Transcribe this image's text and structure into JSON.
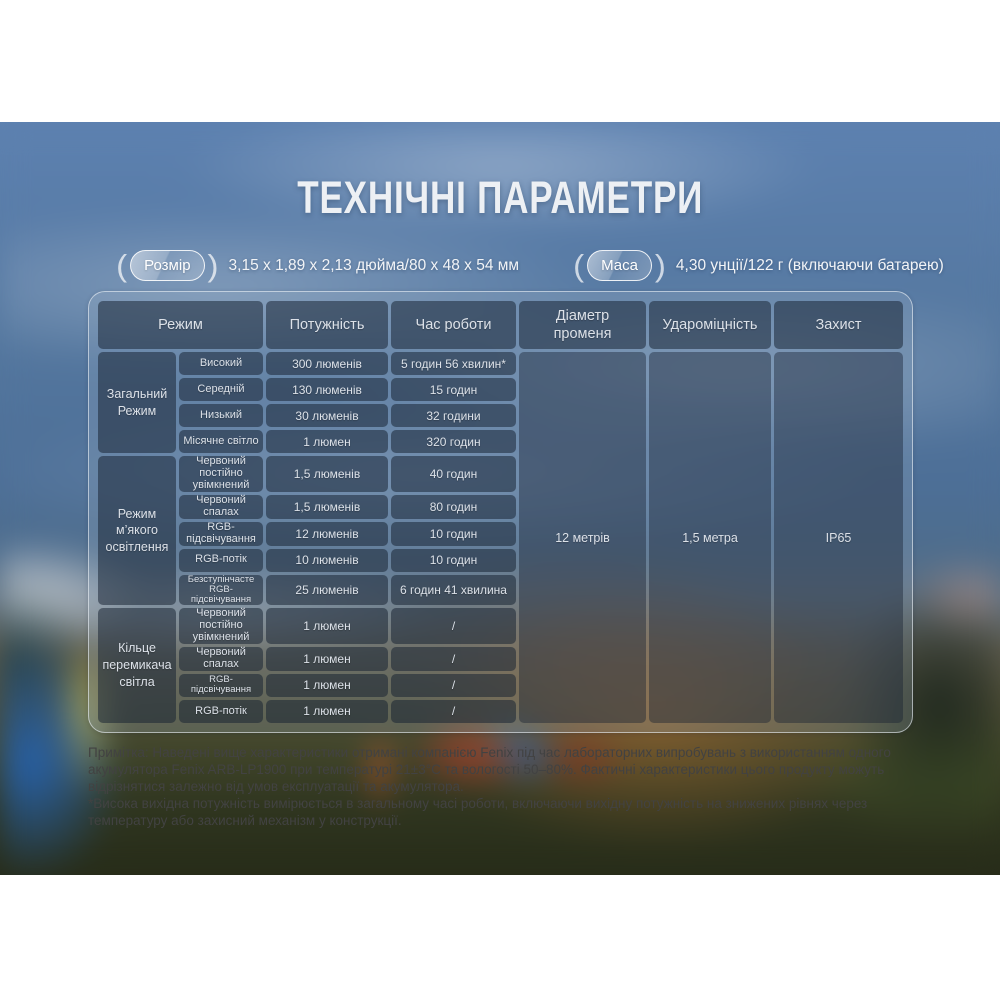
{
  "title": "ТЕХНІЧНІ ПАРАМЕТРИ",
  "badges": {
    "size_label": "Розмір",
    "size_value": "3,15 x 1,89 x 2,13 дюйма/80 x 48 x 54 мм",
    "mass_label": "Маса",
    "mass_value": "4,30 унції/122 г (включаючи батарею)"
  },
  "table": {
    "headers": {
      "mode": "Режим",
      "power": "Потужність",
      "runtime": "Час роботи",
      "beam": "Діаметр променя",
      "impact": "Удароміцність",
      "protection": "Захист"
    },
    "groups": [
      {
        "label": "Загальний Режим",
        "rows": [
          {
            "mode": "Високий",
            "power": "300 люменів",
            "runtime": "5 годин 56 хвилин*"
          },
          {
            "mode": "Середній",
            "power": "130 люменів",
            "runtime": "15 годин"
          },
          {
            "mode": "Низький",
            "power": "30 люменів",
            "runtime": "32 години"
          },
          {
            "mode": "Місячне світло",
            "power": "1 люмен",
            "runtime": "320 годин"
          }
        ]
      },
      {
        "label": "Режим м’якого освітлення",
        "rows": [
          {
            "mode": "Червоний постійно увімкнений",
            "power": "1,5 люменів",
            "runtime": "40 годин"
          },
          {
            "mode": "Червоний спалах",
            "power": "1,5 люменів",
            "runtime": "80 годин"
          },
          {
            "mode": "RGB-підсвічування",
            "power": "12 люменів",
            "runtime": "10 годин"
          },
          {
            "mode": "RGB-потік",
            "power": "10 люменів",
            "runtime": "10 годин"
          },
          {
            "mode": "Безступінчасте RGB-підсвічування",
            "power": "25 люменів",
            "runtime": "6 годин 41 хвилина"
          }
        ]
      },
      {
        "label": "Кільце перемикача світла",
        "rows": [
          {
            "mode": "Червоний постійно увімкнений",
            "power": "1 люмен",
            "runtime": "/"
          },
          {
            "mode": "Червоний спалах",
            "power": "1 люмен",
            "runtime": "/"
          },
          {
            "mode": "RGB-підсвічування",
            "power": "1 люмен",
            "runtime": "/"
          },
          {
            "mode": "RGB-потік",
            "power": "1 люмен",
            "runtime": "/"
          }
        ]
      }
    ],
    "merged": {
      "beam": "12 метрів",
      "impact": "1,5 метра",
      "protection": "IP65"
    }
  },
  "notes": {
    "note1": "Примітка: Наведені вище характеристики отримані компанією Fenix під час лабораторних випробувань з використанням одного акумулятора Fenix ARB-LP1900 при температурі 21±3°C та вологості 50–80%. Фактичні характеристики цього продукту можуть відрізнятися залежно від умов експлуатації та акумулятора.",
    "note2": "*Висока вихідна потужність вимірюється в загальному часі роботи, включаючи вихідну потужність на знижених рівнях через температуру або захисний механізм у конструкції."
  }
}
